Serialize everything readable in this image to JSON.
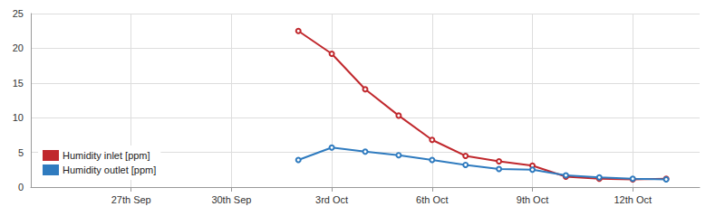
{
  "chart_data": {
    "type": "line",
    "categories": [
      null,
      null,
      null,
      "27th Sep",
      null,
      null,
      "30th Sep",
      null,
      null,
      "3rd Oct",
      null,
      null,
      "6th Oct",
      null,
      null,
      "9th Oct",
      null,
      null,
      "12th Oct",
      null,
      null
    ],
    "series": [
      {
        "name": "Humidity inlet [ppm]",
        "color": "#c0282d",
        "values": [
          null,
          null,
          null,
          null,
          null,
          null,
          null,
          null,
          22.5,
          19.2,
          14.1,
          10.3,
          6.8,
          4.5,
          3.7,
          3.1,
          1.5,
          1.2,
          1.1,
          1.2,
          null
        ]
      },
      {
        "name": "Humidity outlet [ppm]",
        "color": "#2f7bbf",
        "values": [
          null,
          null,
          null,
          null,
          null,
          null,
          null,
          null,
          3.9,
          5.7,
          5.1,
          4.6,
          3.9,
          3.2,
          2.6,
          2.5,
          1.7,
          1.4,
          1.2,
          1.1,
          null
        ]
      }
    ],
    "ylim": [
      0,
      25
    ],
    "yticks": [
      0,
      5,
      10,
      15,
      20,
      25
    ],
    "grid": true,
    "legend": "lower left",
    "marker": "circle"
  }
}
